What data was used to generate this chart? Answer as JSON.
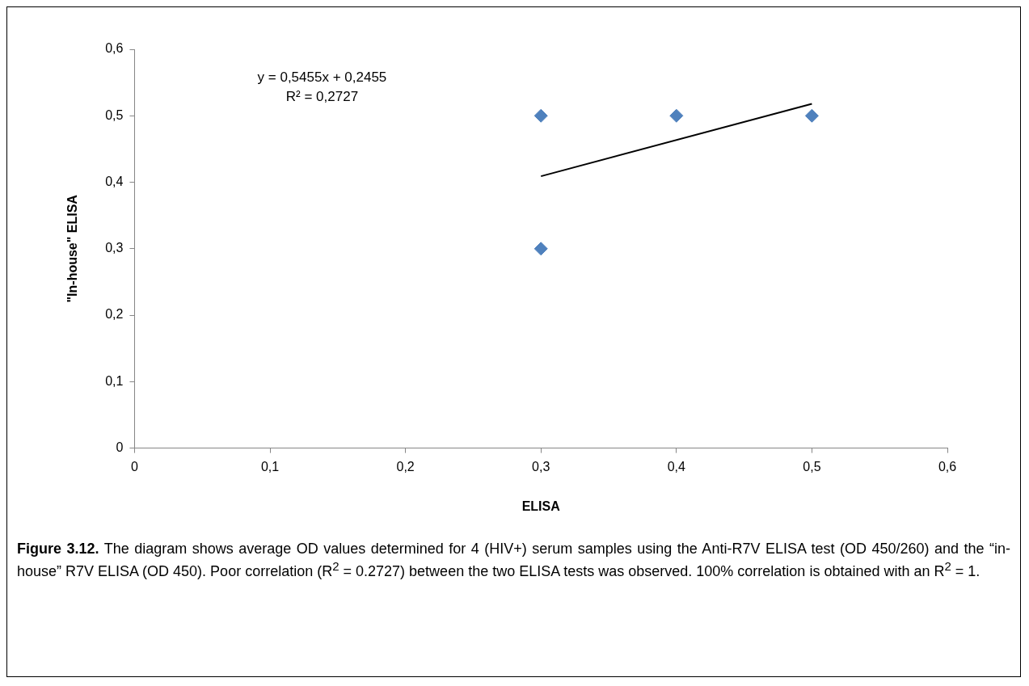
{
  "chart_data": {
    "type": "scatter",
    "xlabel": "ELISA",
    "ylabel": "\"In-house\" ELISA",
    "xlim": [
      0,
      0.6
    ],
    "ylim": [
      0,
      0.6
    ],
    "xticks": [
      0,
      {
        "value": 0.1,
        "label": "0,1"
      },
      {
        "value": 0.2,
        "label": "0,2"
      },
      {
        "value": 0.3,
        "label": "0,3"
      },
      {
        "value": 0.4,
        "label": "0,4"
      },
      {
        "value": 0.5,
        "label": "0,5"
      },
      {
        "value": 0.6,
        "label": "0,6"
      }
    ],
    "yticks": [
      0,
      {
        "value": 0.1,
        "label": "0,1"
      },
      {
        "value": 0.2,
        "label": "0,2"
      },
      {
        "value": 0.3,
        "label": "0,3"
      },
      {
        "value": 0.4,
        "label": "0,4"
      },
      {
        "value": 0.5,
        "label": "0,5"
      },
      {
        "value": 0.6,
        "label": "0,6"
      }
    ],
    "grid": false,
    "legend": false,
    "marker": "diamond",
    "series": [
      {
        "type": "scatter",
        "color": "#4f81bd",
        "x": [
          0.3,
          0.3,
          0.4,
          0.5
        ],
        "values": [
          0.5,
          0.3,
          0.5,
          0.5
        ]
      },
      {
        "type": "line",
        "color": "#000000",
        "marker": "none",
        "x": [
          0.3,
          0.5
        ],
        "values": [
          0.409,
          0.518
        ]
      }
    ],
    "annotations": [
      "y = 0,5455x + 0,2455",
      "R² = 0,2727",
      "Figure 3.12.",
      "The diagram shows average OD values determined for 4 (HIV+) serum samples using the Anti-R7V ELISA test (OD 450/260) and the “in-house” R7V ELISA (OD 450). Poor correlation (R$^{2}$ = 0.2727) between the two ELISA tests was observed. 100% correlation is obtained with an R$^{2}$ = 1."
    ]
  }
}
